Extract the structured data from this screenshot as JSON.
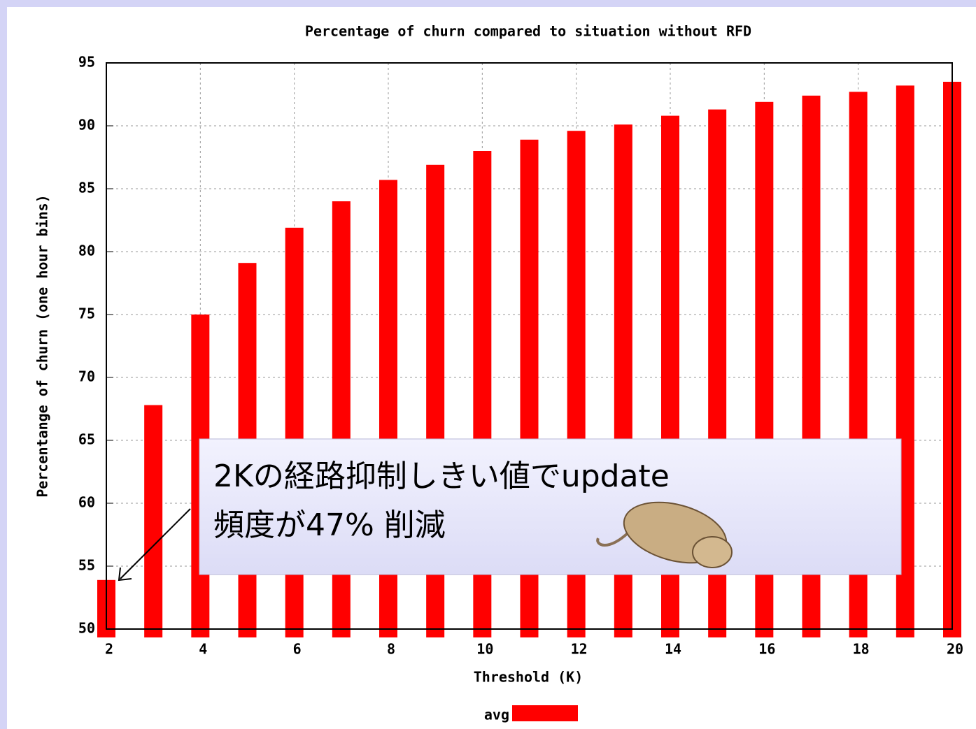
{
  "chart_data": {
    "type": "bar",
    "title": "Percentage of churn compared to situation without RFD",
    "x_label": "Threshold (K)",
    "y_label": "Percentange of churn (one hour bins)",
    "x": [
      2,
      3,
      4,
      5,
      6,
      7,
      8,
      9,
      10,
      11,
      12,
      13,
      14,
      15,
      16,
      17,
      18,
      19,
      20
    ],
    "series": [
      {
        "name": "avg",
        "color": "#ff0000",
        "values": [
          53.9,
          67.8,
          75.0,
          79.1,
          81.9,
          84.0,
          85.7,
          86.9,
          88.0,
          88.9,
          89.6,
          90.1,
          90.8,
          91.3,
          91.9,
          92.4,
          92.7,
          93.2,
          93.5
        ]
      }
    ],
    "xlim": [
      2,
      20
    ],
    "xticks": [
      2,
      4,
      6,
      8,
      10,
      12,
      14,
      16,
      18,
      20
    ],
    "ylim": [
      50,
      95
    ],
    "yticks": [
      50,
      55,
      60,
      65,
      70,
      75,
      80,
      85,
      90,
      95
    ],
    "grid": true,
    "legend": "bottom",
    "annotation": {
      "lines": [
        "2Kの経路抑制しきい値でupdate",
        "頻度が47% 削減"
      ]
    }
  }
}
